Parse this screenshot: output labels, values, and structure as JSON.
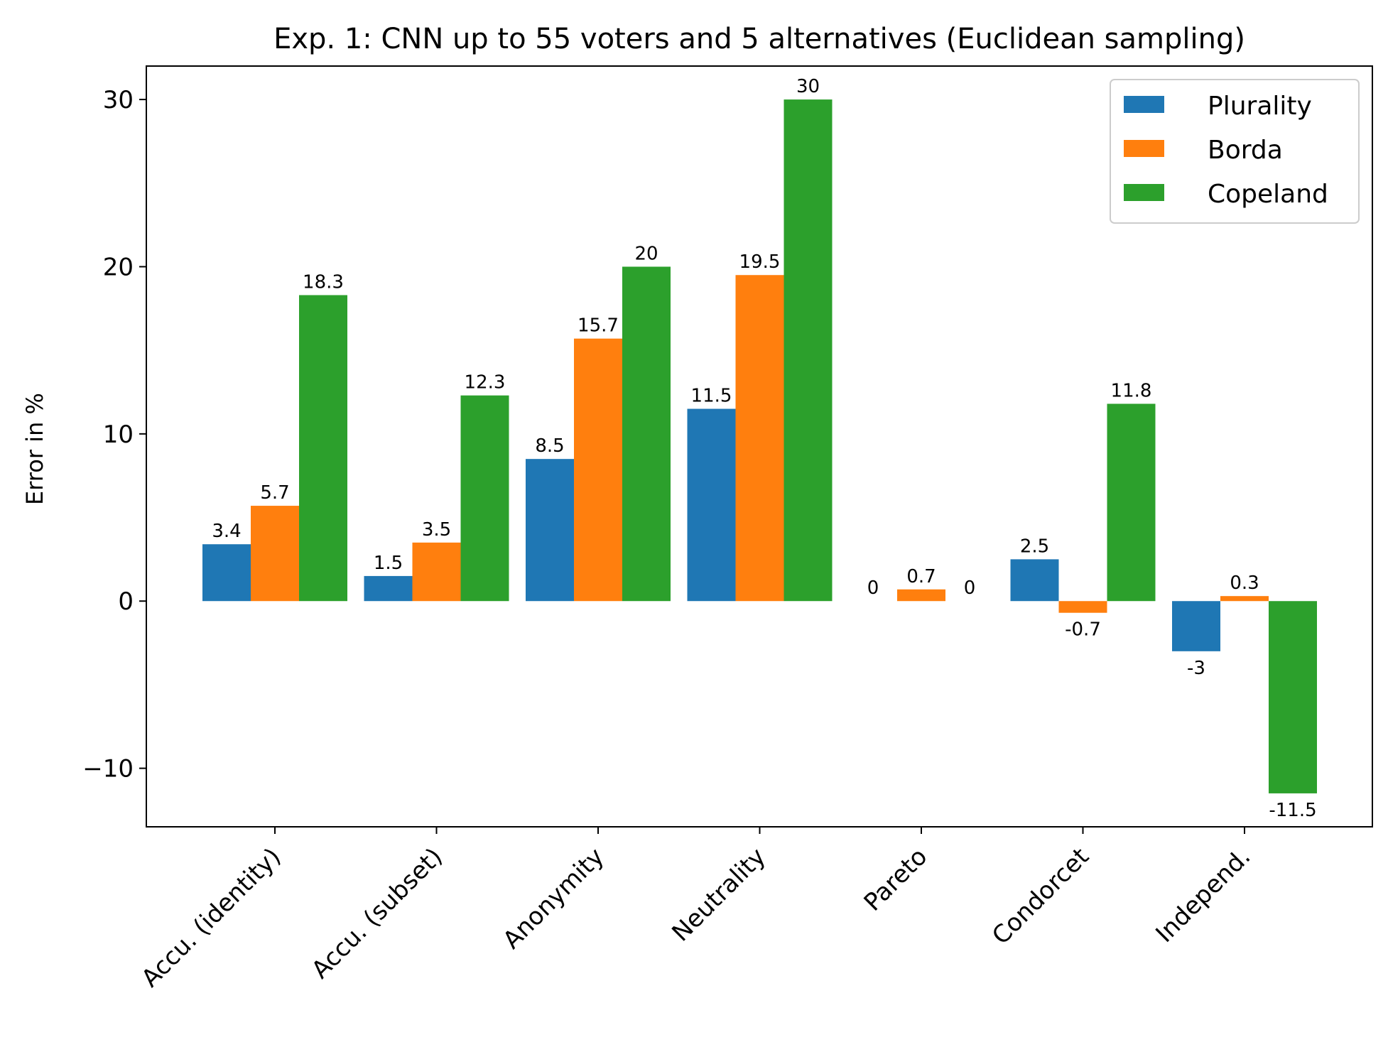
{
  "chart_data": {
    "type": "bar",
    "title": "Exp. 1: CNN up to 55 voters and 5 alternatives (Euclidean sampling)",
    "xlabel": "",
    "ylabel": "Error in %",
    "ylim": [
      -13.5,
      32
    ],
    "yticks": [
      -10,
      0,
      10,
      20,
      30
    ],
    "ytick_labels": [
      "−10",
      "0",
      "10",
      "20",
      "30"
    ],
    "categories": [
      "Accu. (identity)",
      "Accu. (subset)",
      "Anonymity",
      "Neutrality",
      "Pareto",
      "Condorcet",
      "Independ."
    ],
    "series": [
      {
        "name": "Plurality",
        "color": "#1f77b4",
        "values": [
          3.4,
          1.5,
          8.5,
          11.5,
          0,
          2.5,
          -3
        ],
        "labels": [
          "3.4",
          "1.5",
          "8.5",
          "11.5",
          "0",
          "2.5",
          "-3"
        ]
      },
      {
        "name": "Borda",
        "color": "#ff7f0e",
        "values": [
          5.7,
          3.5,
          15.7,
          19.5,
          0.7,
          -0.7,
          0.3
        ],
        "labels": [
          "5.7",
          "3.5",
          "15.7",
          "19.5",
          "0.7",
          "-0.7",
          "0.3"
        ]
      },
      {
        "name": "Copeland",
        "color": "#2ca02c",
        "values": [
          18.3,
          12.3,
          20,
          30,
          0,
          11.8,
          -11.5
        ],
        "labels": [
          "18.3",
          "12.3",
          "20",
          "30",
          "0",
          "11.8",
          "-11.5"
        ]
      }
    ],
    "legend": "top-right",
    "grid": false
  }
}
